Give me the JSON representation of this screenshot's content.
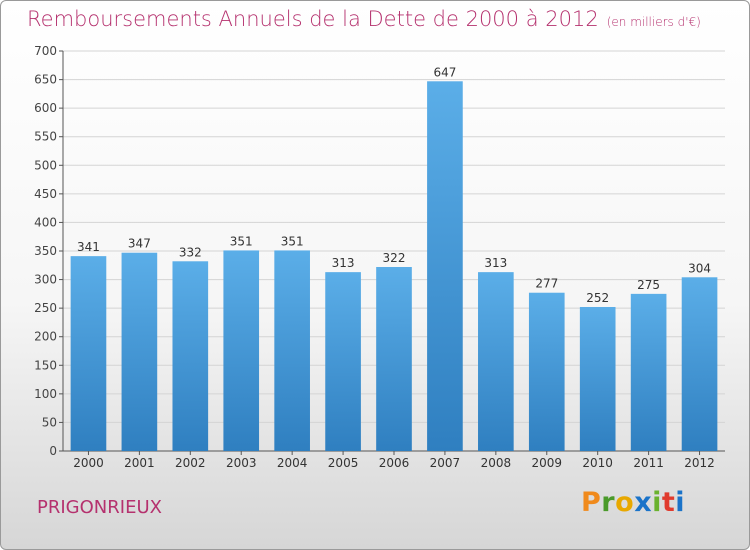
{
  "title": "Remboursements Annuels de la Dette de 2000 à 2012",
  "subtitle": "(en milliers d'€)",
  "commune": "PRIGONRIEUX",
  "logo": {
    "letters": [
      "P",
      "r",
      "o",
      "x",
      "i",
      "t",
      "i"
    ],
    "colors": [
      "#f08a1c",
      "#4a9a2a",
      "#e8a800",
      "#1a73c9",
      "#6ab22e",
      "#e03b2e",
      "#1a73c9"
    ]
  },
  "colors": {
    "bar_light": "#5baee8",
    "bar_dark": "#2f7fc0",
    "title": "#b5316e"
  },
  "chart_data": {
    "type": "bar",
    "categories": [
      "2000",
      "2001",
      "2002",
      "2003",
      "2004",
      "2005",
      "2006",
      "2007",
      "2008",
      "2009",
      "2010",
      "2011",
      "2012"
    ],
    "values": [
      341,
      347,
      332,
      351,
      351,
      313,
      322,
      647,
      313,
      277,
      252,
      275,
      304
    ],
    "ylim": [
      0,
      700
    ],
    "yticks": [
      0,
      50,
      100,
      150,
      200,
      250,
      300,
      350,
      400,
      450,
      500,
      550,
      600,
      650,
      700
    ],
    "grid": true
  }
}
